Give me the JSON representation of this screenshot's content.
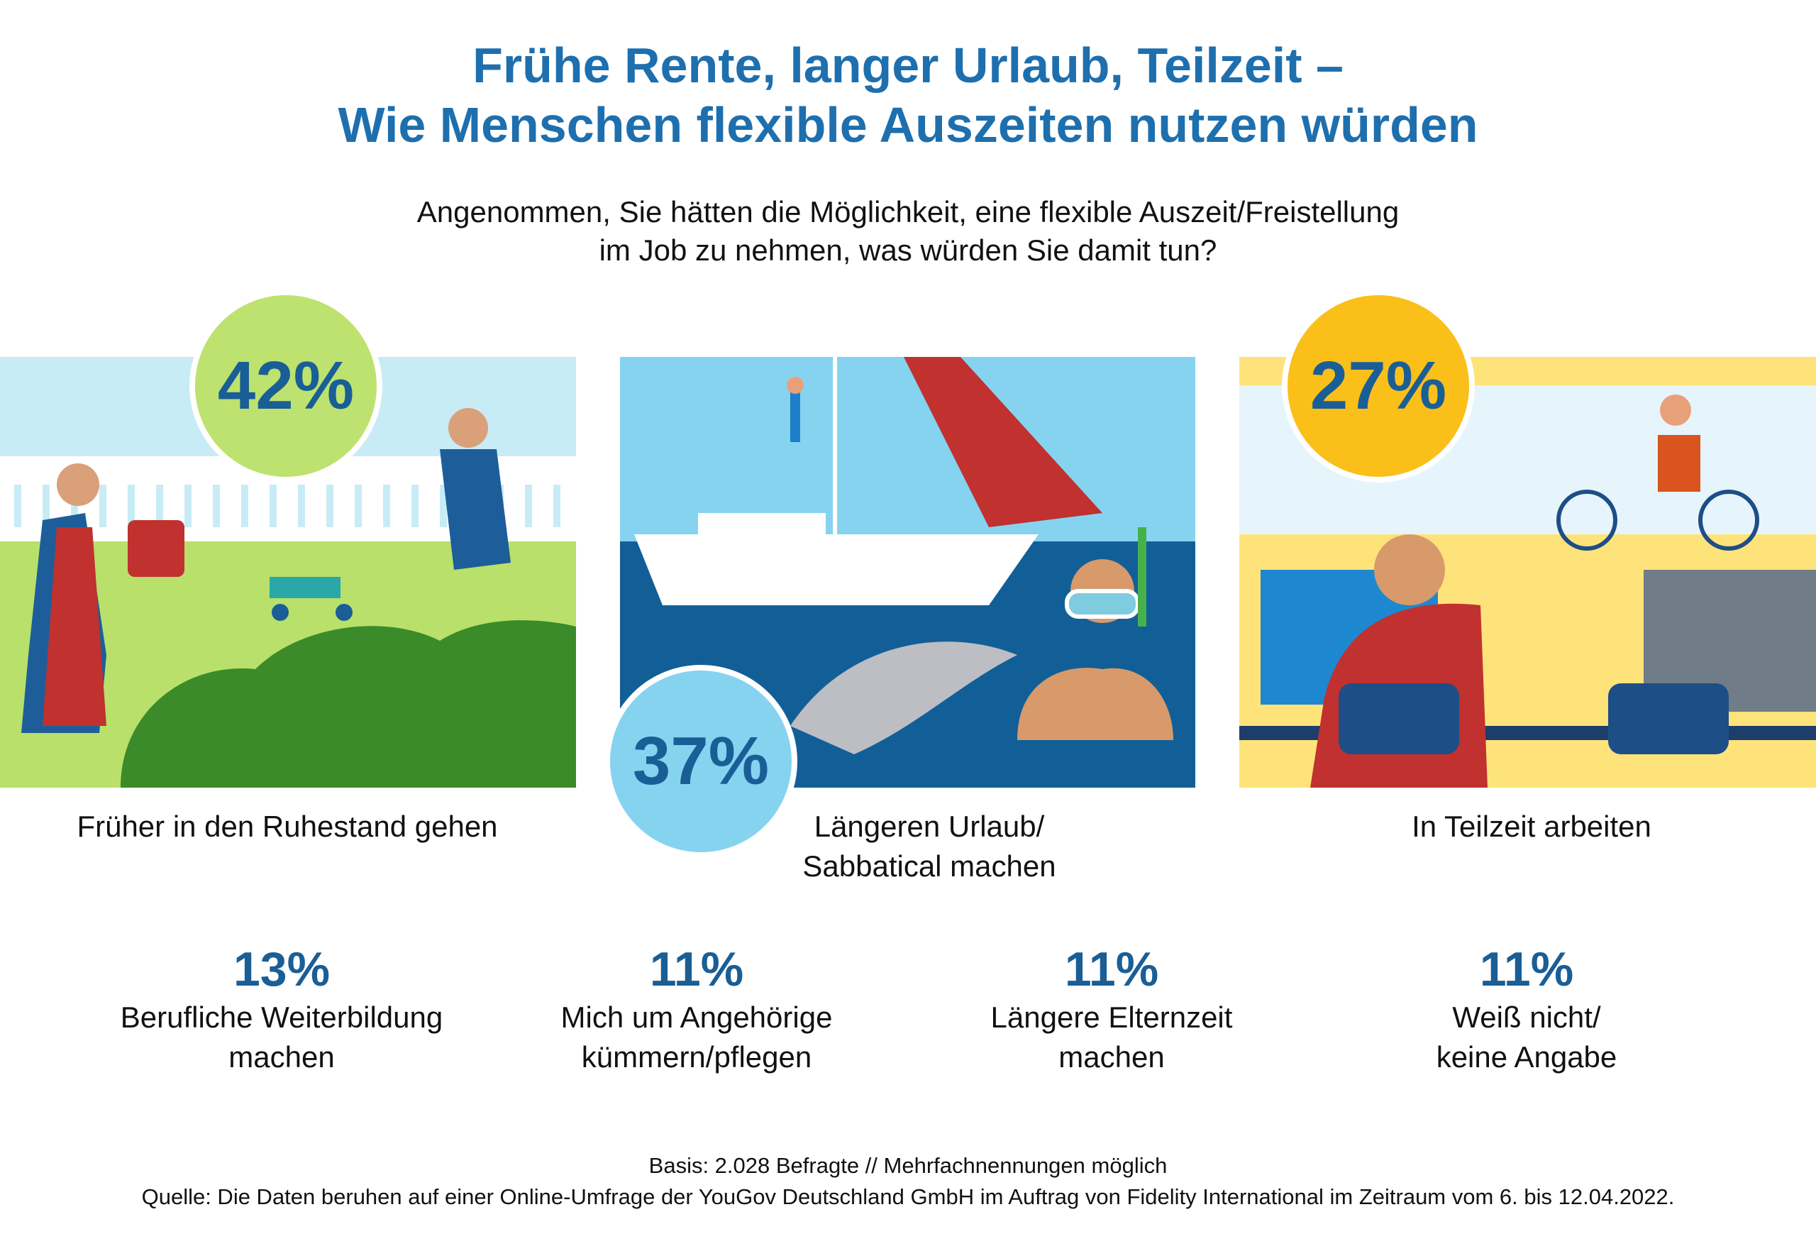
{
  "title": {
    "line1": "Frühe Rente, langer Urlaub, Teilzeit –",
    "line2": "Wie Menschen flexible Auszeiten nutzen würden"
  },
  "question": {
    "line1": "Angenommen, Sie hätten die Möglichkeit, eine flexible Auszeit/Freistellung",
    "line2": "im Job zu nehmen, was würden Sie damit tun?"
  },
  "top_items": [
    {
      "percent": "42%",
      "label": "Früher in den Ruhestand gehen",
      "color": "#bde26f"
    },
    {
      "percent": "37%",
      "label_line1": "Längeren Urlaub/",
      "label_line2": "Sabbatical machen",
      "color": "#86d3f0"
    },
    {
      "percent": "27%",
      "label": "In Teilzeit arbeiten",
      "color": "#fbbf1a"
    }
  ],
  "bottom_items": [
    {
      "percent": "13%",
      "line1": "Berufliche Weiterbildung",
      "line2": "machen"
    },
    {
      "percent": "11%",
      "line1": "Mich um Angehörige",
      "line2": "kümmern/pflegen"
    },
    {
      "percent": "11%",
      "line1": "Längere Elternzeit",
      "line2": "machen"
    },
    {
      "percent": "11%",
      "line1": "Weiß nicht/",
      "line2": "keine Angabe"
    }
  ],
  "footer": {
    "basis": "Basis: 2.028 Befragte // Mehrfachnennungen möglich",
    "source": "Quelle: Die Daten beruhen auf einer Online-Umfrage der YouGov Deutschland GmbH im Auftrag von Fidelity International im Zeitraum vom 6. bis 12.04.2022."
  }
}
